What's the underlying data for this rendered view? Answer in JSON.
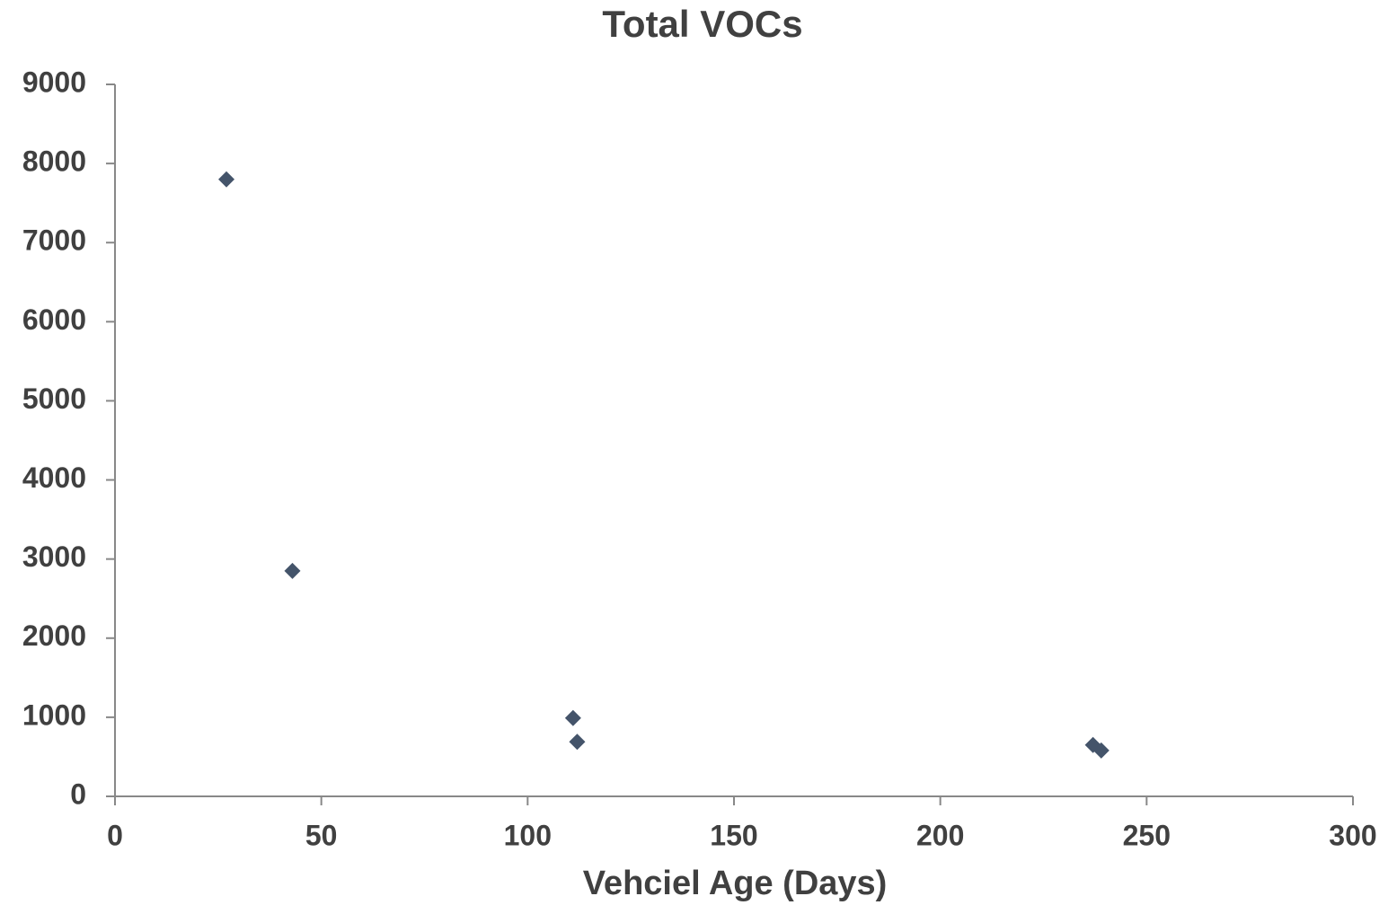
{
  "chart_data": {
    "type": "scatter",
    "title": "Total VOCs",
    "x_label": "Vehciel Age (Days)",
    "series": [
      {
        "name": "Total VOCs",
        "color": "#44546a",
        "x": [
          27,
          43,
          111,
          112,
          237,
          239
        ],
        "values": [
          7800,
          2850,
          990,
          690,
          650,
          580
        ]
      }
    ],
    "xlim": [
      0,
      300
    ],
    "xticks": [
      0,
      50,
      100,
      150,
      200,
      250,
      300
    ],
    "ylim": [
      0,
      9000
    ],
    "yticks": [
      0,
      1000,
      2000,
      3000,
      4000,
      5000,
      6000,
      7000,
      8000,
      9000
    ],
    "grid": false
  }
}
